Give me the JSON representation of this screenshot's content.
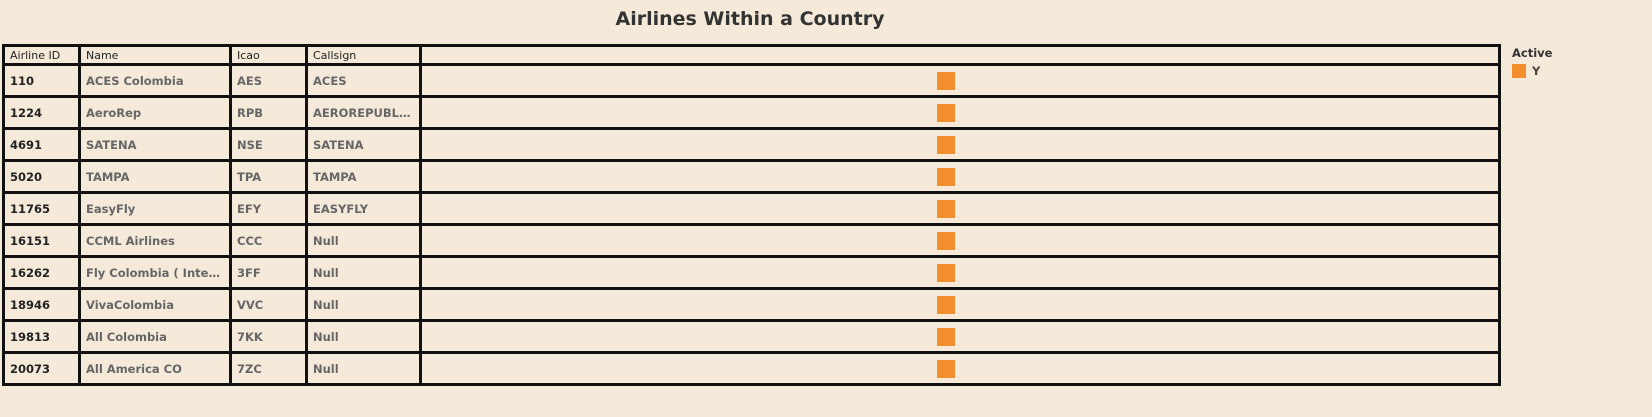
{
  "title": "Airlines Within a Country",
  "columns": {
    "airline_id": "Airline ID",
    "name": "Name",
    "icao": "Icao",
    "callsign": "Callsign",
    "mark": ""
  },
  "rows": [
    {
      "airline_id": "110",
      "name": "ACES Colombia",
      "icao": "AES",
      "callsign": "ACES",
      "active": "Y"
    },
    {
      "airline_id": "1224",
      "name": "AeroRep",
      "icao": "RPB",
      "callsign": "AEROREPUBLICA",
      "active": "Y"
    },
    {
      "airline_id": "4691",
      "name": "SATENA",
      "icao": "NSE",
      "callsign": "SATENA",
      "active": "Y"
    },
    {
      "airline_id": "5020",
      "name": "TAMPA",
      "icao": "TPA",
      "callsign": "TAMPA",
      "active": "Y"
    },
    {
      "airline_id": "11765",
      "name": "EasyFly",
      "icao": "EFY",
      "callsign": "EASYFLY",
      "active": "Y"
    },
    {
      "airline_id": "16151",
      "name": "CCML Airlines",
      "icao": "CCC",
      "callsign": "Null",
      "active": "Y"
    },
    {
      "airline_id": "16262",
      "name": "Fly Colombia ( Interliging ..",
      "icao": "3FF",
      "callsign": "Null",
      "active": "Y"
    },
    {
      "airline_id": "18946",
      "name": "VivaColombia",
      "icao": "VVC",
      "callsign": "Null",
      "active": "Y"
    },
    {
      "airline_id": "19813",
      "name": "All Colombia",
      "icao": "7KK",
      "callsign": "Null",
      "active": "Y"
    },
    {
      "airline_id": "20073",
      "name": "All America CO",
      "icao": "7ZC",
      "callsign": "Null",
      "active": "Y"
    }
  ],
  "legend": {
    "title": "Active",
    "items": [
      {
        "label": "Y",
        "color": "#f28e2b"
      }
    ]
  },
  "colors": {
    "background": "#f5ead9",
    "mark": "#f28e2b",
    "border": "#111111"
  }
}
